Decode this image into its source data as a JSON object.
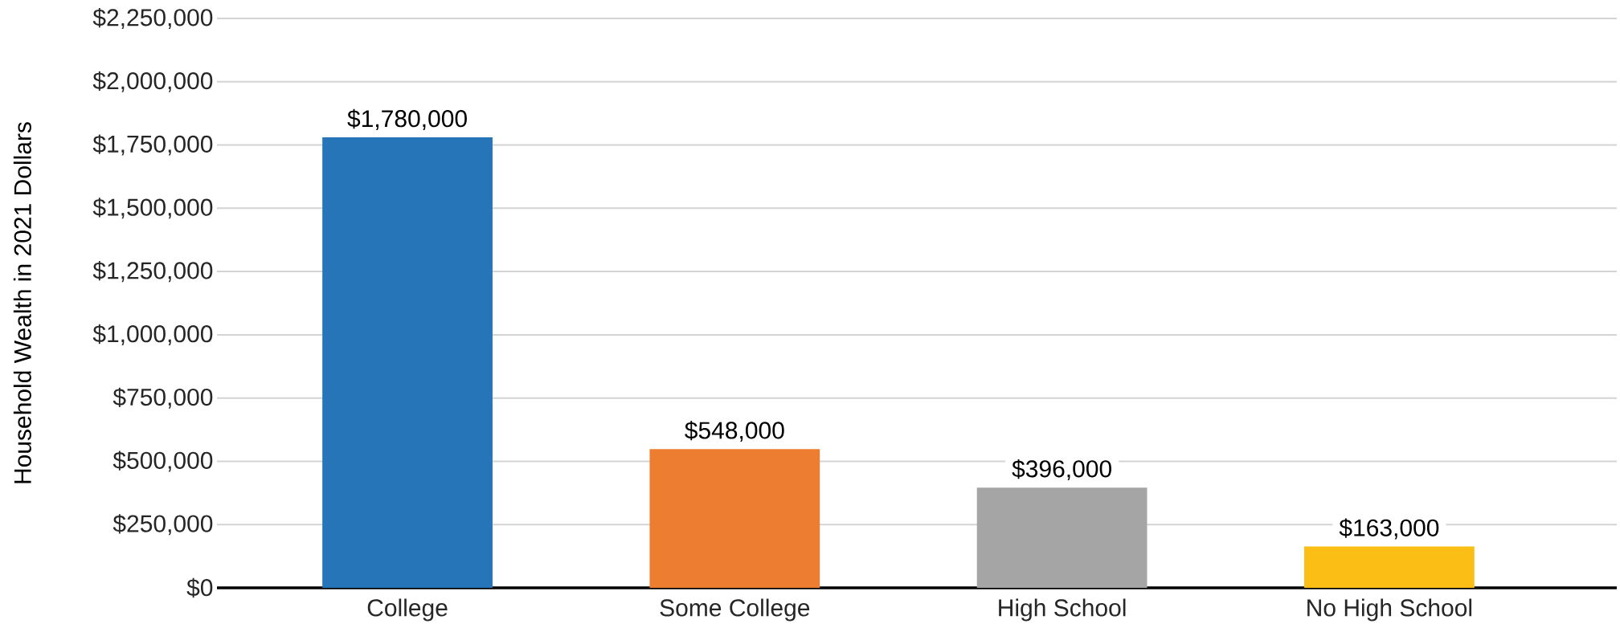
{
  "chart_data": {
    "type": "bar",
    "ylabel": "Household Wealth in 2021 Dollars",
    "categories": [
      "College",
      "Some College",
      "High School",
      "No High School"
    ],
    "values": [
      1780000,
      548000,
      396000,
      163000
    ],
    "colors": [
      "#2675b8",
      "#ed7d31",
      "#a5a5a5",
      "#fbbe14"
    ],
    "value_labels": [
      "$1,780,000",
      "$548,000",
      "$396,000",
      "$163,000"
    ],
    "ylim": [
      0,
      2250000
    ],
    "yticks": [
      {
        "value": 0,
        "label": "$0"
      },
      {
        "value": 250000,
        "label": "$250,000"
      },
      {
        "value": 500000,
        "label": "$500,000"
      },
      {
        "value": 750000,
        "label": "$750,000"
      },
      {
        "value": 1000000,
        "label": "$1,000,000"
      },
      {
        "value": 1250000,
        "label": "$1,250,000"
      },
      {
        "value": 1500000,
        "label": "$1,500,000"
      },
      {
        "value": 1750000,
        "label": "$1,750,000"
      },
      {
        "value": 2000000,
        "label": "$2,000,000"
      },
      {
        "value": 2250000,
        "label": "$2,250,000"
      }
    ],
    "grid": "y"
  }
}
